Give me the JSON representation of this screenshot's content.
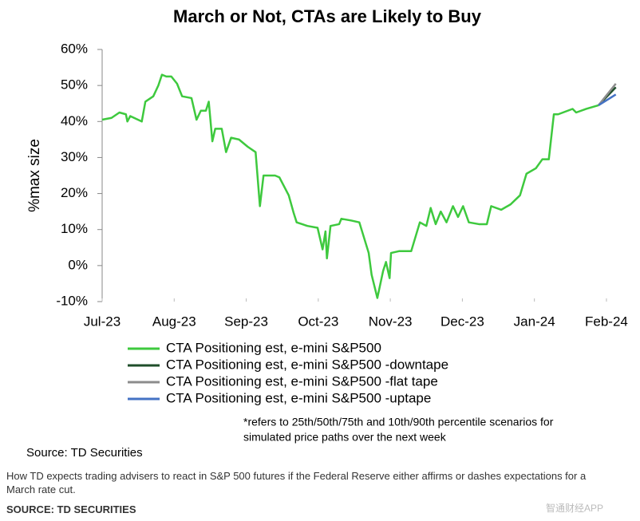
{
  "chart_data": {
    "type": "line",
    "title": "March or Not, CTAs are Likely to Buy",
    "y_label": "%max size",
    "xlim": [
      0,
      7.2
    ],
    "xticks": [
      {
        "value": 0,
        "label": "Jul-23"
      },
      {
        "value": 1,
        "label": "Aug-23"
      },
      {
        "value": 2,
        "label": "Sep-23"
      },
      {
        "value": 3,
        "label": "Oct-23"
      },
      {
        "value": 4,
        "label": "Nov-23"
      },
      {
        "value": 5,
        "label": "Dec-23"
      },
      {
        "value": 6,
        "label": "Jan-24"
      },
      {
        "value": 7,
        "label": "Feb-24"
      }
    ],
    "ylim": [
      -10,
      60
    ],
    "yticks": [
      {
        "value": 60,
        "label": "60%"
      },
      {
        "value": 50,
        "label": "50%"
      },
      {
        "value": 40,
        "label": "40%"
      },
      {
        "value": 30,
        "label": "30%"
      },
      {
        "value": 20,
        "label": "20%"
      },
      {
        "value": 10,
        "label": "10%"
      },
      {
        "value": 0,
        "label": "0%"
      },
      {
        "value": -10,
        "label": "-10%"
      }
    ],
    "series": [
      {
        "name": "CTA Positioning est, e-mini S&P500",
        "color": "#3ec93e",
        "x": [
          0,
          0.13,
          0.24,
          0.33,
          0.35,
          0.39,
          0.55,
          0.6,
          0.71,
          0.78,
          0.83,
          0.89,
          0.96,
          1.04,
          1.11,
          1.24,
          1.31,
          1.37,
          1.44,
          1.48,
          1.53,
          1.57,
          1.66,
          1.72,
          1.79,
          1.9,
          2.02,
          2.13,
          2.19,
          2.24,
          2.4,
          2.46,
          2.59,
          2.66,
          2.7,
          2.85,
          2.99,
          3.06,
          3.1,
          3.12,
          3.17,
          3.29,
          3.32,
          3.46,
          3.57,
          3.7,
          3.74,
          3.82,
          3.9,
          3.94,
          3.99,
          4.01,
          4.12,
          4.29,
          4.41,
          4.5,
          4.56,
          4.63,
          4.7,
          4.78,
          4.87,
          4.94,
          5.01,
          5.09,
          5.23,
          5.34,
          5.4,
          5.54,
          5.67,
          5.8,
          5.89,
          6.02,
          6.11,
          6.2,
          6.27,
          6.33,
          6.53,
          6.58,
          6.72,
          6.89
        ],
        "values": [
          40.5,
          41,
          42.5,
          42,
          40,
          41.5,
          40,
          45.5,
          47,
          50,
          53,
          52.5,
          52.5,
          50.5,
          47,
          46.5,
          40.5,
          43,
          43,
          45.5,
          34.5,
          38,
          38,
          31.5,
          35.5,
          35,
          33,
          31.5,
          16.5,
          25,
          25,
          24.5,
          19.5,
          14.5,
          12,
          11,
          10.5,
          4.5,
          9.5,
          2,
          11,
          11.5,
          13,
          12.5,
          12,
          3.5,
          -2.5,
          -9,
          -1.5,
          1,
          -3.5,
          3.5,
          4,
          4,
          12,
          11,
          16,
          11.5,
          15,
          12,
          16.5,
          13.5,
          16.5,
          12,
          11.5,
          11.5,
          16.5,
          15.5,
          17,
          19.5,
          25.5,
          27,
          29.5,
          29.5,
          42,
          42,
          43.5,
          42.5,
          43.5,
          44.5
        ]
      },
      {
        "name": "CTA Positioning est, e-mini S&P500 -downtape",
        "color": "#1f4e2a",
        "x": [
          6.89,
          7.01,
          7.13
        ],
        "values": [
          44.5,
          47,
          49.5
        ]
      },
      {
        "name": "CTA Positioning est, e-mini S&P500 -flat tape",
        "color": "#8c8c8c",
        "x": [
          6.89,
          7.01,
          7.13
        ],
        "values": [
          44.5,
          47.5,
          50.5
        ]
      },
      {
        "name": "CTA Positioning est, e-mini S&P500 -uptape",
        "color": "#4472c4",
        "x": [
          6.89,
          7.01,
          7.13
        ],
        "values": [
          44.5,
          46,
          47.5
        ]
      }
    ],
    "note": [
      "*refers to 25th/50th/75th and 10th/90th percentile scenarios for",
      "simulated price paths over the next week"
    ],
    "source": "Source: TD Securities"
  },
  "caption": [
    "How TD expects trading advisers to react in S&P 500 futures if the Federal Reserve either affirms or dashes expectations for a",
    "March rate cut."
  ],
  "credit": "SOURCE: TD SECURITIES",
  "watermark": "智通财经APP"
}
